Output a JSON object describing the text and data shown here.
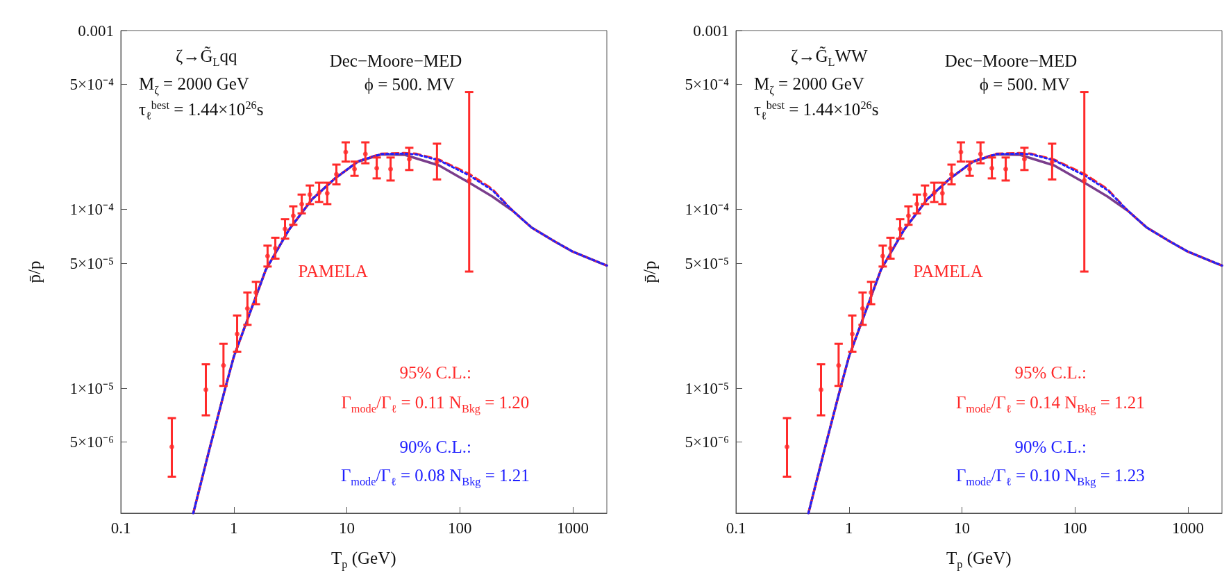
{
  "chart_data": [
    {
      "type": "line",
      "xlabel": "T$_{p}$ (GeV)",
      "ylabel": "p̄/p",
      "log": "xy",
      "xlim": [
        0.1,
        2000
      ],
      "xticks": [
        0.1,
        1,
        10,
        100,
        1000
      ],
      "ylim": [
        2e-06,
        0.001
      ],
      "yticks": [
        0.001,
        {
          "value": 0.0005,
          "label": "5×10⁻⁴"
        },
        {
          "value": 0.0001,
          "label": "1×10⁻⁴"
        },
        {
          "value": 5e-05,
          "label": "5×10⁻⁵"
        },
        {
          "value": 1e-05,
          "label": "1×10⁻⁵"
        },
        {
          "value": 5e-06,
          "label": "5×10⁻⁶"
        }
      ],
      "annotations": [
        "ζ→G̃$_{L}$qq",
        "M$_{ζ}$ = 2000 GeV",
        "τ$_{ℓ}$$^{best}$ = 1.44×10$^{26}$s",
        "Dec−Moore−MED",
        "ϕ = 500. MV",
        "95% C.L.:",
        "Γ$_{mode}$/Γ$_{ℓ}$ = 0.11  N$_{Bkg}$ = 1.20",
        "90% C.L.:",
        "Γ$_{mode}$/Γ$_{ℓ}$ = 0.08 N$_{Bkg}$ = 1.21"
      ],
      "series": [
        {
          "color": "#7a3d8c",
          "line_style": "solid",
          "marker": "none",
          "x": [
            0.438,
            0.6,
            0.84,
            1.0,
            1.92,
            3.08,
            4.93,
            7.87,
            12.6,
            20.2,
            32.3,
            41,
            65.5,
            121,
            194,
            295,
            433,
            696,
            1000,
            1775,
            2000
          ],
          "values": [
            2e-06,
            4.4e-06,
            1e-05,
            1.5e-05,
            4.6e-05,
            7.7e-05,
            0.000114,
            0.000149,
            0.000185,
            0.000203,
            0.000202,
            0.000193,
            0.000176,
            0.000141,
            0.000118,
            9.8e-05,
            7.9e-05,
            6.6e-05,
            5.8e-05,
            5e-05,
            4.85e-05
          ]
        },
        {
          "color": "#ff2a2a",
          "line_style": "dashed",
          "marker": "none",
          "x": [
            0.438,
            0.6,
            0.84,
            1.0,
            1.92,
            3.08,
            4.93,
            7.87,
            12.6,
            20.2,
            32.3,
            41,
            65.5,
            121,
            194,
            295,
            433,
            696,
            1000,
            1775,
            2000
          ],
          "values": [
            2e-06,
            4.4e-06,
            1e-05,
            1.5e-05,
            4.6e-05,
            7.7e-05,
            0.000114,
            0.000149,
            0.000186,
            0.000205,
            0.000207,
            0.000205,
            0.00019,
            0.000158,
            0.00013,
            9.8e-05,
            7.9e-05,
            6.6e-05,
            5.8e-05,
            5e-05,
            4.85e-05
          ]
        },
        {
          "color": "#2020ff",
          "line_style": "dotted",
          "marker": "none",
          "x": [
            0.438,
            0.6,
            0.84,
            1.0,
            1.92,
            3.08,
            4.93,
            7.87,
            12.6,
            20.2,
            32.3,
            41,
            65.5,
            121,
            194,
            295,
            433,
            696,
            1000,
            1775,
            2000
          ],
          "values": [
            2e-06,
            4.4e-06,
            1e-05,
            1.5e-05,
            4.6e-05,
            7.7e-05,
            0.000114,
            0.000149,
            0.000186,
            0.000204,
            0.000205,
            0.000203,
            0.000188,
            0.000155,
            0.000128,
            9.8e-05,
            7.9e-05,
            6.6e-05,
            5.8e-05,
            5e-05,
            4.85e-05
          ]
        },
        {
          "type": "scatter",
          "name": "PAMELA",
          "color": "#ff2a2a",
          "marker": "circle",
          "x": [
            0.283,
            0.566,
            0.81,
            1.07,
            1.32,
            1.57,
            1.99,
            2.33,
            2.84,
            3.36,
            3.99,
            4.71,
            5.69,
            6.71,
            8.09,
            9.78,
            11.7,
            14.6,
            18.4,
            24.4,
            35.7,
            62.8,
            121
          ],
          "values": [
            4.7e-06,
            9.8e-06,
            1.34e-05,
            2.01e-05,
            2.79e-05,
            3.43e-05,
            5.48e-05,
            6.06e-05,
            7.77e-05,
            9.2e-05,
            0.000107,
            0.000121,
            0.000124,
            0.000123,
            0.000157,
            0.000209,
            0.000168,
            0.000204,
            0.00017,
            0.000168,
            0.000191,
            0.000184,
            0.000145
          ],
          "errors": [
            [
              3.2e-06,
              6.8e-06
            ],
            [
              7.05e-06,
              1.36e-05
            ],
            [
              1.03e-05,
              1.77e-05
            ],
            [
              1.6e-05,
              2.55e-05
            ],
            [
              2.26e-05,
              3.43e-05
            ],
            [
              2.95e-05,
              3.93e-05
            ],
            [
              4.79e-05,
              6.27e-05
            ],
            [
              5.3e-05,
              6.94e-05
            ],
            [
              6.86e-05,
              8.81e-05
            ],
            [
              8.2e-05,
              0.000104
            ],
            [
              9.5e-05,
              0.000121
            ],
            [
              0.000107,
              0.000136
            ],
            [
              0.00011,
              0.000141
            ],
            [
              0.000107,
              0.000141
            ],
            [
              0.000138,
              0.000178
            ],
            [
              0.000185,
              0.000237
            ],
            [
              0.000154,
              0.000185
            ],
            [
              0.000181,
              0.000237
            ],
            [
              0.000149,
              0.000195
            ],
            [
              0.000145,
              0.000195
            ],
            [
              0.000166,
              0.000221
            ],
            [
              0.000147,
              0.000233
            ],
            [
              4.49e-05,
              0.000453
            ]
          ]
        }
      ]
    },
    {
      "type": "line",
      "xlabel": "T$_{p}$ (GeV)",
      "ylabel": "p̄/p",
      "log": "xy",
      "xlim": [
        0.1,
        2000
      ],
      "xticks": [
        0.1,
        1,
        10,
        100,
        1000
      ],
      "ylim": [
        2e-06,
        0.001
      ],
      "yticks": [
        0.001,
        {
          "value": 0.0005,
          "label": "5×10⁻⁴"
        },
        {
          "value": 0.0001,
          "label": "1×10⁻⁴"
        },
        {
          "value": 5e-05,
          "label": "5×10⁻⁵"
        },
        {
          "value": 1e-05,
          "label": "1×10⁻⁵"
        },
        {
          "value": 5e-06,
          "label": "5×10⁻⁶"
        }
      ],
      "annotations": [
        "ζ→G̃$_{L}$WW",
        "M$_{ζ}$ = 2000 GeV",
        "τ$_{ℓ}$$^{best}$ = 1.44×10$^{26}$s",
        "Dec−Moore−MED",
        "ϕ = 500. MV",
        "95% C.L.:",
        "Γ$_{mode}$/Γ$_{ℓ}$ = 0.14  N$_{Bkg}$ = 1.21",
        "90% C.L.:",
        "Γ$_{mode}$/Γ$_{ℓ}$ = 0.10 N$_{Bkg}$ = 1.23"
      ],
      "series": [
        {
          "color": "#7a3d8c",
          "line_style": "solid",
          "marker": "none",
          "x": [
            0.438,
            0.6,
            0.84,
            1.0,
            1.92,
            3.08,
            4.93,
            7.87,
            12.6,
            20.2,
            32.3,
            41,
            65.5,
            121,
            194,
            295,
            433,
            696,
            1000,
            1775,
            2000
          ],
          "values": [
            2e-06,
            4.4e-06,
            1e-05,
            1.5e-05,
            4.6e-05,
            7.7e-05,
            0.000114,
            0.000149,
            0.000185,
            0.000203,
            0.000202,
            0.000193,
            0.000176,
            0.000141,
            0.000118,
            9.8e-05,
            7.9e-05,
            6.6e-05,
            5.8e-05,
            5e-05,
            4.85e-05
          ]
        },
        {
          "color": "#ff2a2a",
          "line_style": "dashed",
          "marker": "none",
          "x": [
            0.438,
            0.6,
            0.84,
            1.0,
            1.92,
            3.08,
            4.93,
            7.87,
            12.6,
            20.2,
            32.3,
            41,
            65.5,
            121,
            194,
            295,
            433,
            696,
            1000,
            1775,
            2000
          ],
          "values": [
            2e-06,
            4.4e-06,
            1e-05,
            1.5e-05,
            4.6e-05,
            7.7e-05,
            0.000114,
            0.000149,
            0.000186,
            0.000205,
            0.000207,
            0.000205,
            0.00019,
            0.000158,
            0.00013,
            9.8e-05,
            7.9e-05,
            6.6e-05,
            5.8e-05,
            5e-05,
            4.85e-05
          ]
        },
        {
          "color": "#2020ff",
          "line_style": "dotted",
          "marker": "none",
          "x": [
            0.438,
            0.6,
            0.84,
            1.0,
            1.92,
            3.08,
            4.93,
            7.87,
            12.6,
            20.2,
            32.3,
            41,
            65.5,
            121,
            194,
            295,
            433,
            696,
            1000,
            1775,
            2000
          ],
          "values": [
            2e-06,
            4.4e-06,
            1e-05,
            1.5e-05,
            4.6e-05,
            7.7e-05,
            0.000114,
            0.000149,
            0.000186,
            0.000204,
            0.000205,
            0.000203,
            0.000188,
            0.000155,
            0.000128,
            9.8e-05,
            7.9e-05,
            6.6e-05,
            5.8e-05,
            5e-05,
            4.85e-05
          ]
        },
        {
          "type": "scatter",
          "name": "PAMELA",
          "color": "#ff2a2a",
          "marker": "circle",
          "x": [
            0.283,
            0.566,
            0.81,
            1.07,
            1.32,
            1.57,
            1.99,
            2.33,
            2.84,
            3.36,
            3.99,
            4.71,
            5.69,
            6.71,
            8.09,
            9.78,
            11.7,
            14.6,
            18.4,
            24.4,
            35.7,
            62.8,
            121
          ],
          "values": [
            4.7e-06,
            9.8e-06,
            1.34e-05,
            2.01e-05,
            2.79e-05,
            3.43e-05,
            5.48e-05,
            6.06e-05,
            7.77e-05,
            9.2e-05,
            0.000107,
            0.000121,
            0.000124,
            0.000123,
            0.000157,
            0.000209,
            0.000168,
            0.000204,
            0.00017,
            0.000168,
            0.000191,
            0.000184,
            0.000145
          ],
          "errors": [
            [
              3.2e-06,
              6.8e-06
            ],
            [
              7.05e-06,
              1.36e-05
            ],
            [
              1.03e-05,
              1.77e-05
            ],
            [
              1.6e-05,
              2.55e-05
            ],
            [
              2.26e-05,
              3.43e-05
            ],
            [
              2.95e-05,
              3.93e-05
            ],
            [
              4.79e-05,
              6.27e-05
            ],
            [
              5.3e-05,
              6.94e-05
            ],
            [
              6.86e-05,
              8.81e-05
            ],
            [
              8.2e-05,
              0.000104
            ],
            [
              9.5e-05,
              0.000121
            ],
            [
              0.000107,
              0.000136
            ],
            [
              0.00011,
              0.000141
            ],
            [
              0.000107,
              0.000141
            ],
            [
              0.000138,
              0.000178
            ],
            [
              0.000185,
              0.000237
            ],
            [
              0.000154,
              0.000185
            ],
            [
              0.000181,
              0.000237
            ],
            [
              0.000149,
              0.000195
            ],
            [
              0.000145,
              0.000195
            ],
            [
              0.000166,
              0.000221
            ],
            [
              0.000147,
              0.000233
            ],
            [
              4.49e-05,
              0.000453
            ]
          ]
        }
      ]
    }
  ]
}
